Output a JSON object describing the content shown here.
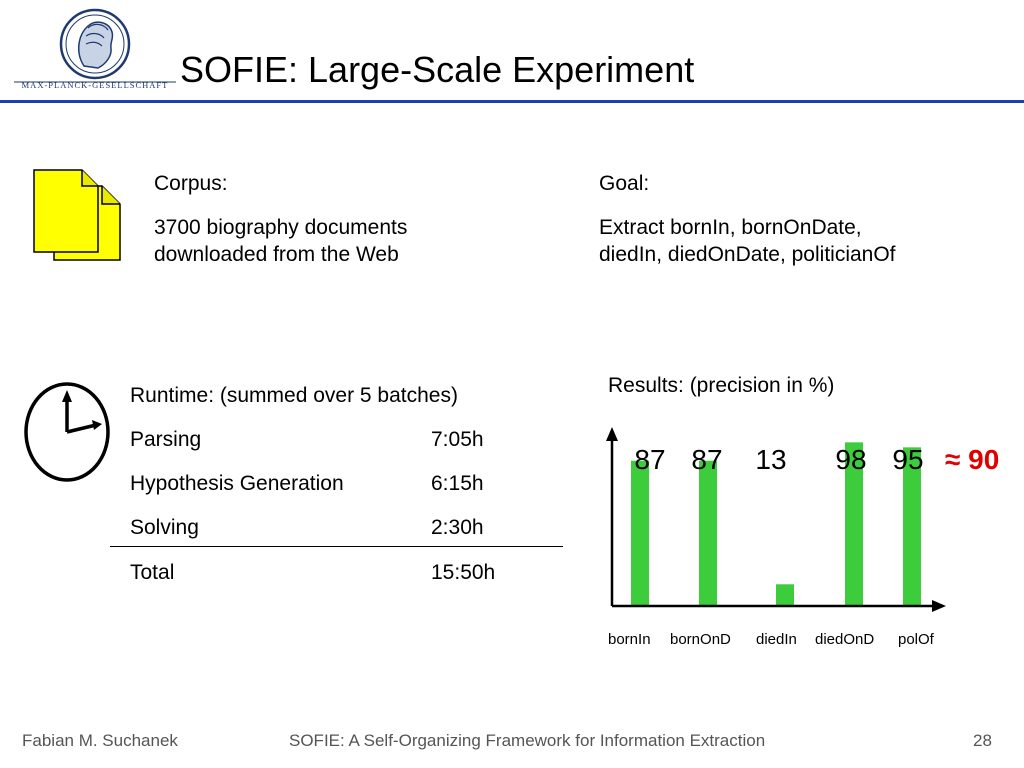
{
  "header": {
    "logo_text": "MAX-PLANCK-GESELLSCHAFT",
    "title": "SOFIE: Large-Scale Experiment",
    "rule_color": "#1e3fb0"
  },
  "corpus": {
    "icon": "documents-icon",
    "label": "Corpus:",
    "line1": "3700 biography documents",
    "line2": "downloaded from the Web"
  },
  "goal": {
    "label": "Goal:",
    "line1": "Extract bornIn, bornOnDate,",
    "line2": "diedIn, diedOnDate, politicianOf"
  },
  "runtime": {
    "icon": "clock-icon",
    "header": "Runtime:  (summed over 5 batches)",
    "rows": [
      {
        "label": "Parsing",
        "value": "7:05h"
      },
      {
        "label": "Hypothesis Generation",
        "value": "6:15h"
      },
      {
        "label": "Solving",
        "value": "2:30h"
      }
    ],
    "total": {
      "label": "Total",
      "value": "15:50h"
    }
  },
  "results": {
    "label": "Results:   (precision in %)",
    "approx": "≈ 90",
    "approx_color": "#e00000"
  },
  "chart_data": {
    "type": "bar",
    "categories": [
      "bornIn",
      "bornOnD",
      "diedIn",
      "diedOnD",
      "polOf"
    ],
    "values": [
      87,
      87,
      13,
      98,
      95
    ],
    "value_labels": [
      "87",
      "87",
      "13",
      "98",
      "95"
    ],
    "bar_color": "#3ccc3c",
    "ylim": [
      0,
      100
    ],
    "grid": false,
    "xlabel": "",
    "ylabel": ""
  },
  "footer": {
    "author": "Fabian M. Suchanek",
    "center": "SOFIE: A Self-Organizing Framework for Information Extraction",
    "page": "28"
  }
}
